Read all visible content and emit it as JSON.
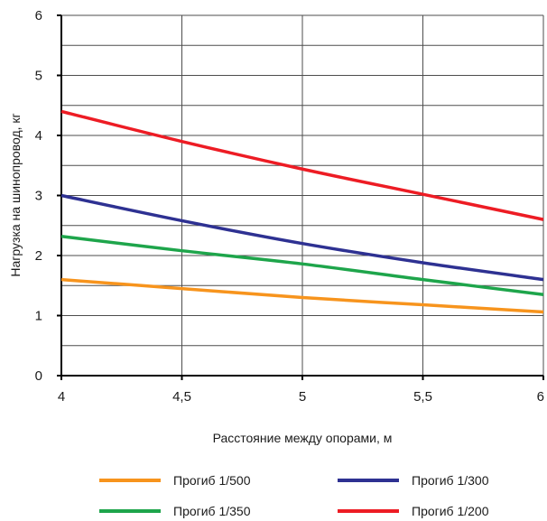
{
  "chart_data": {
    "type": "line",
    "xlabel": "Расстояние между опорами, м",
    "ylabel": "Нагрузка на шинопровод,  кг",
    "xlim": [
      4,
      6
    ],
    "ylim": [
      0,
      6
    ],
    "x_ticks": [
      4,
      4.5,
      5,
      5.5,
      6
    ],
    "x_tick_labels": [
      "4",
      "4,5",
      "5",
      "5,5",
      "6"
    ],
    "y_ticks": [
      0,
      1,
      2,
      3,
      4,
      5,
      6
    ],
    "y_tick_labels": [
      "0",
      "1",
      "2",
      "3",
      "4",
      "5",
      "6"
    ],
    "grid": true,
    "legend_position": "bottom",
    "x": [
      4,
      4.5,
      5,
      5.5,
      6
    ],
    "series": [
      {
        "name": "Прогиб 1/500",
        "color": "#f7941d",
        "values": [
          1.6,
          1.45,
          1.3,
          1.18,
          1.06
        ]
      },
      {
        "name": "Прогиб 1/350",
        "color": "#1ea54b",
        "values": [
          2.32,
          2.08,
          1.86,
          1.6,
          1.35
        ]
      },
      {
        "name": "Прогиб 1/300",
        "color": "#2e3192",
        "values": [
          3.0,
          2.58,
          2.2,
          1.88,
          1.6
        ]
      },
      {
        "name": "Прогиб 1/200",
        "color": "#ed1c24",
        "values": [
          4.4,
          3.9,
          3.44,
          3.02,
          2.6
        ]
      }
    ]
  }
}
